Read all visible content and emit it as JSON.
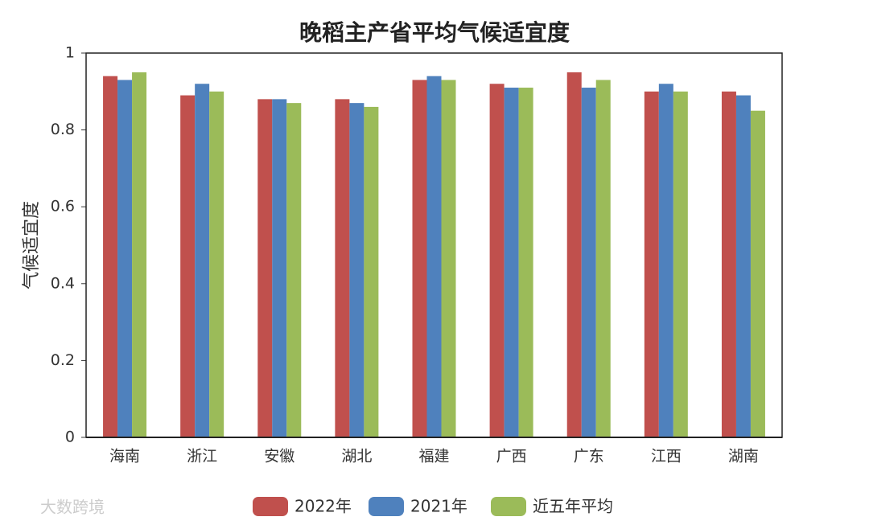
{
  "chart_data": {
    "type": "bar",
    "title": "晚稻主产省平均气候适宜度",
    "ylabel": "气候适宜度",
    "categories": [
      "海南",
      "浙江",
      "安徽",
      "湖北",
      "福建",
      "广西",
      "广东",
      "江西",
      "湖南"
    ],
    "series": [
      {
        "name": "2022年",
        "color": "#c0504d",
        "values": [
          0.94,
          0.89,
          0.88,
          0.88,
          0.93,
          0.92,
          0.95,
          0.9,
          0.9
        ]
      },
      {
        "name": "2021年",
        "color": "#4f81bd",
        "values": [
          0.93,
          0.92,
          0.88,
          0.87,
          0.94,
          0.91,
          0.91,
          0.92,
          0.89
        ]
      },
      {
        "name": "近五年平均",
        "color": "#9bbb59",
        "values": [
          0.95,
          0.9,
          0.87,
          0.86,
          0.93,
          0.91,
          0.93,
          0.9,
          0.85
        ]
      }
    ],
    "ylim": [
      0,
      1
    ],
    "yticks": [
      0,
      0.2,
      0.4,
      0.6,
      0.8,
      1
    ],
    "legend": "bottom",
    "watermark": "大数跨境"
  }
}
